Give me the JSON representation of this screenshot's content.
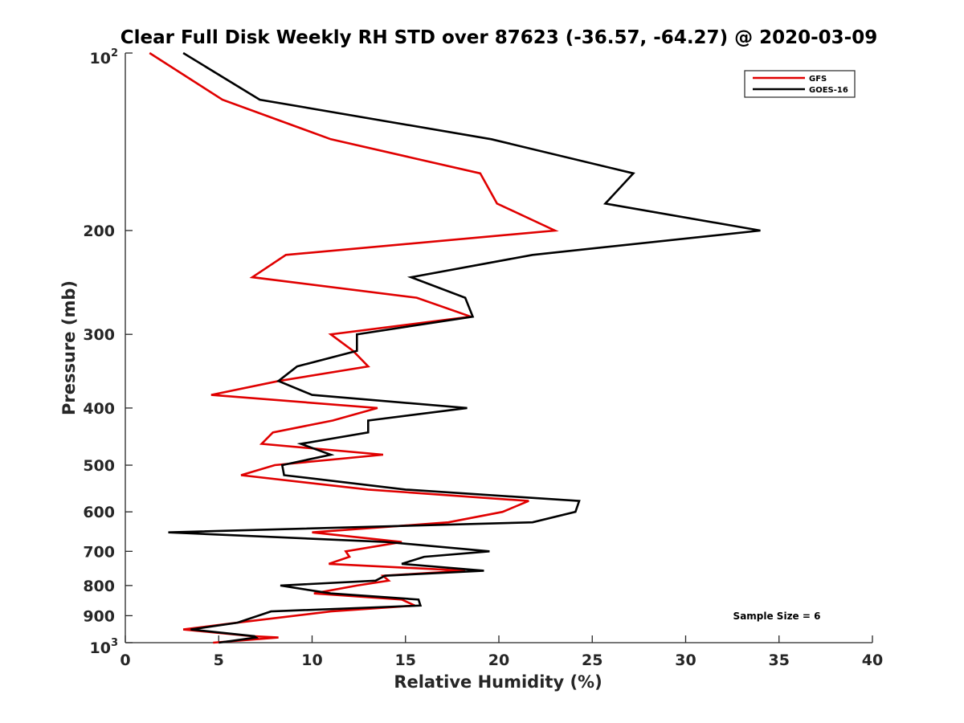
{
  "chart_data": {
    "type": "line",
    "title": "Clear Full Disk Weekly RH STD over 87623 (-36.57, -64.27) @ 2020-03-09",
    "xlabel": "Relative Humidity (%)",
    "ylabel": "Pressure (mb)",
    "xlim": [
      0,
      40
    ],
    "ylim": [
      100,
      1000
    ],
    "y_scale": "log",
    "y_reversed": true,
    "x_ticks": [
      "0",
      "5",
      "10",
      "15",
      "20",
      "25",
      "30",
      "35",
      "40"
    ],
    "y_ticks": [
      {
        "value": 100,
        "label": "10",
        "sup": "2"
      },
      {
        "value": 200,
        "label": "200"
      },
      {
        "value": 300,
        "label": "300"
      },
      {
        "value": 400,
        "label": "400"
      },
      {
        "value": 500,
        "label": "500"
      },
      {
        "value": 600,
        "label": "600"
      },
      {
        "value": 700,
        "label": "700"
      },
      {
        "value": 800,
        "label": "800"
      },
      {
        "value": 900,
        "label": "900"
      },
      {
        "value": 1000,
        "label": "10",
        "sup": "3"
      }
    ],
    "grid": false,
    "legend_position": "top-right",
    "series": [
      {
        "name": "GFS",
        "color": "#e00000",
        "points": [
          [
            1.3,
            100
          ],
          [
            5.2,
            120
          ],
          [
            11.0,
            140
          ],
          [
            19.0,
            160
          ],
          [
            19.9,
            180
          ],
          [
            23.0,
            200
          ],
          [
            8.6,
            220
          ],
          [
            6.8,
            240
          ],
          [
            15.6,
            260
          ],
          [
            18.5,
            280
          ],
          [
            11.0,
            300
          ],
          [
            12.2,
            320
          ],
          [
            13.0,
            340
          ],
          [
            8.2,
            360
          ],
          [
            4.6,
            380
          ],
          [
            13.5,
            400
          ],
          [
            11.1,
            420
          ],
          [
            7.9,
            440
          ],
          [
            7.3,
            460
          ],
          [
            13.8,
            480
          ],
          [
            8.0,
            500
          ],
          [
            6.2,
            520
          ],
          [
            13.0,
            550
          ],
          [
            21.6,
            575
          ],
          [
            20.2,
            600
          ],
          [
            17.3,
            625
          ],
          [
            10.0,
            650
          ],
          [
            14.8,
            675
          ],
          [
            11.8,
            700
          ],
          [
            12.0,
            715
          ],
          [
            10.9,
            735
          ],
          [
            18.2,
            755
          ],
          [
            13.8,
            770
          ],
          [
            14.1,
            785
          ],
          [
            12.4,
            800
          ],
          [
            10.1,
            825
          ],
          [
            14.8,
            845
          ],
          [
            15.5,
            865
          ],
          [
            11.0,
            885
          ],
          [
            6.0,
            925
          ],
          [
            3.1,
            950
          ],
          [
            6.8,
            975
          ],
          [
            8.2,
            980
          ],
          [
            4.7,
            1000
          ]
        ]
      },
      {
        "name": "GOES-16",
        "color": "#000000",
        "points": [
          [
            3.1,
            100
          ],
          [
            7.2,
            120
          ],
          [
            19.6,
            140
          ],
          [
            27.2,
            160
          ],
          [
            25.7,
            180
          ],
          [
            34.0,
            200
          ],
          [
            21.8,
            220
          ],
          [
            15.3,
            240
          ],
          [
            18.2,
            260
          ],
          [
            18.6,
            280
          ],
          [
            12.4,
            300
          ],
          [
            12.4,
            320
          ],
          [
            9.2,
            340
          ],
          [
            8.2,
            360
          ],
          [
            10.0,
            380
          ],
          [
            18.3,
            400
          ],
          [
            13.0,
            420
          ],
          [
            13.0,
            440
          ],
          [
            9.4,
            460
          ],
          [
            11.0,
            480
          ],
          [
            8.4,
            500
          ],
          [
            8.5,
            520
          ],
          [
            15.0,
            550
          ],
          [
            24.3,
            575
          ],
          [
            24.1,
            600
          ],
          [
            21.8,
            625
          ],
          [
            2.3,
            650
          ],
          [
            14.0,
            675
          ],
          [
            19.5,
            700
          ],
          [
            16.0,
            715
          ],
          [
            14.8,
            735
          ],
          [
            19.2,
            755
          ],
          [
            13.9,
            770
          ],
          [
            13.4,
            785
          ],
          [
            8.3,
            800
          ],
          [
            11.0,
            825
          ],
          [
            15.7,
            845
          ],
          [
            15.8,
            865
          ],
          [
            7.8,
            885
          ],
          [
            6.0,
            925
          ],
          [
            3.5,
            950
          ],
          [
            6.9,
            975
          ],
          [
            7.0,
            980
          ],
          [
            5.0,
            1000
          ]
        ]
      }
    ],
    "annotation": "Sample Size = 6"
  }
}
